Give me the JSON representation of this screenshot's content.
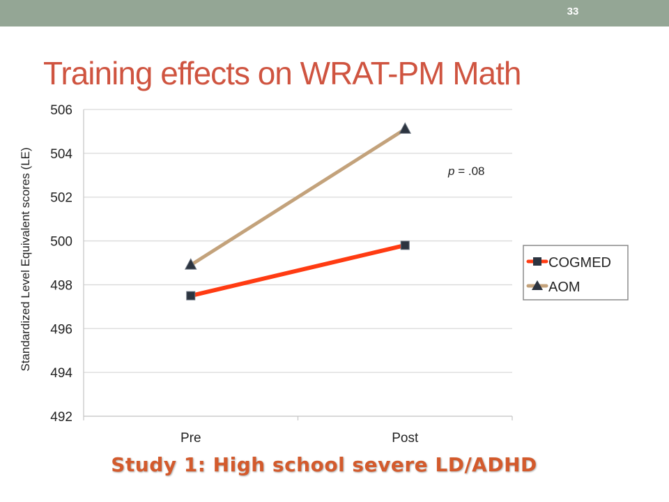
{
  "slide": {
    "page_number": "33",
    "title": "Training effects on WRAT-PM Math",
    "caption": "Study 1:  High school severe LD/ADHD"
  },
  "colors": {
    "topbar": "#94a695",
    "title": "#cf5440",
    "caption": "#d35a2c",
    "cogmed": "#ff3b12",
    "aom": "#c3a27b",
    "marker": "#2c3440",
    "grid": "#d9d9d9"
  },
  "chart_data": {
    "type": "line",
    "title": "",
    "xlabel": "",
    "ylabel": "Standardized Level Equivalent scores (LE)",
    "categories": [
      "Pre",
      "Post"
    ],
    "ylim": [
      492,
      506
    ],
    "yticks": [
      492,
      494,
      496,
      498,
      500,
      502,
      504,
      506
    ],
    "grid": true,
    "legend_position": "right",
    "series": [
      {
        "name": "COGMED",
        "values": [
          497.5,
          499.8
        ],
        "color": "#ff3b12",
        "marker": "square"
      },
      {
        "name": "AOM",
        "values": [
          498.9,
          505.1
        ],
        "color": "#c3a27b",
        "marker": "triangle"
      }
    ],
    "annotations": [
      {
        "text_italic": "p",
        "text": " =  .08"
      }
    ]
  }
}
